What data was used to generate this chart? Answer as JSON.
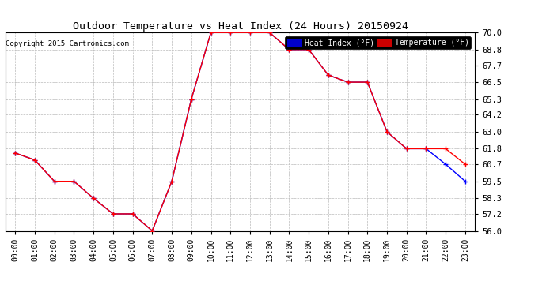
{
  "title": "Outdoor Temperature vs Heat Index (24 Hours) 20150924",
  "copyright": "Copyright 2015 Cartronics.com",
  "hours": [
    0,
    1,
    2,
    3,
    4,
    5,
    6,
    7,
    8,
    9,
    10,
    11,
    12,
    13,
    14,
    15,
    16,
    17,
    18,
    19,
    20,
    21,
    22,
    23
  ],
  "temperature": [
    61.5,
    61.0,
    59.5,
    59.5,
    58.3,
    57.2,
    57.2,
    56.0,
    59.5,
    65.3,
    70.0,
    70.0,
    70.0,
    70.0,
    68.8,
    68.8,
    67.0,
    66.5,
    66.5,
    63.0,
    61.8,
    61.8,
    61.8,
    60.7
  ],
  "heat_index": [
    61.5,
    61.0,
    59.5,
    59.5,
    58.3,
    57.2,
    57.2,
    56.0,
    59.5,
    65.3,
    70.0,
    70.0,
    70.0,
    70.0,
    68.8,
    68.8,
    67.0,
    66.5,
    66.5,
    63.0,
    61.8,
    61.8,
    60.7,
    59.5
  ],
  "temp_color": "#ff0000",
  "heat_color": "#0000ff",
  "background_color": "#ffffff",
  "grid_color": "#bbbbbb",
  "ylim": [
    56.0,
    70.0
  ],
  "yticks": [
    56.0,
    57.2,
    58.3,
    59.5,
    60.7,
    61.8,
    63.0,
    64.2,
    65.3,
    66.5,
    67.7,
    68.8,
    70.0
  ],
  "legend_heat_bg": "#0000cc",
  "legend_temp_bg": "#cc0000",
  "legend_heat_label": "Heat Index (°F)",
  "legend_temp_label": "Temperature (°F)"
}
